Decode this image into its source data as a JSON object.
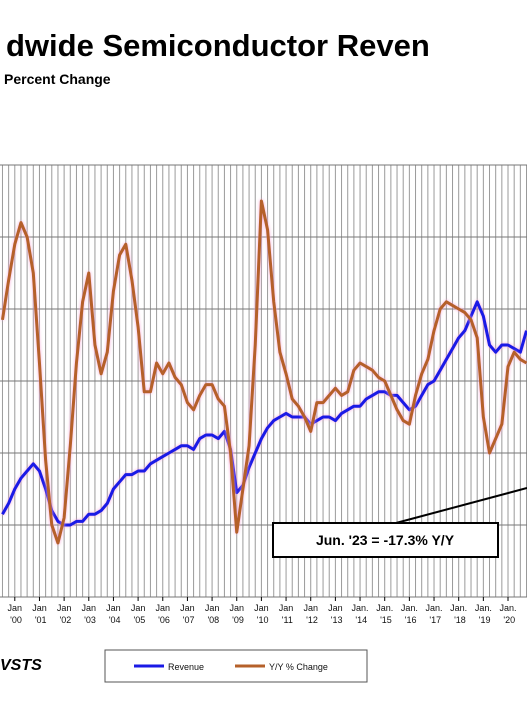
{
  "chart_data": {
    "type": "line",
    "title": "dwide Semiconductor Reven",
    "subtitle": "Percent Change",
    "annotation": "Jun. '23 = -17.3% Y/Y",
    "source": "VSTS",
    "grid": true,
    "xlim": [
      1999.4,
      2020.77
    ],
    "ylim": [
      0,
      60
    ],
    "y2lim": [
      -60,
      60
    ],
    "xticks": [
      {
        "value": 2000,
        "label": "Jan '00"
      },
      {
        "value": 2001,
        "label": "Jan '01"
      },
      {
        "value": 2002,
        "label": "Jan '02"
      },
      {
        "value": 2003,
        "label": "Jan '03"
      },
      {
        "value": 2004,
        "label": "Jan '04"
      },
      {
        "value": 2005,
        "label": "Jan '05"
      },
      {
        "value": 2006,
        "label": "Jan '06"
      },
      {
        "value": 2007,
        "label": "Jan '07"
      },
      {
        "value": 2008,
        "label": "Jan '08"
      },
      {
        "value": 2009,
        "label": "Jan '09"
      },
      {
        "value": 2010,
        "label": "Jan '10"
      },
      {
        "value": 2011,
        "label": "Jan '11"
      },
      {
        "value": 2012,
        "label": "Jan '12"
      },
      {
        "value": 2013,
        "label": "Jan '13"
      },
      {
        "value": 2014,
        "label": "Jan. '14"
      },
      {
        "value": 2015,
        "label": "Jan. '15"
      },
      {
        "value": 2016,
        "label": "Jan. '16"
      },
      {
        "value": 2017,
        "label": "Jan. '17"
      },
      {
        "value": 2018,
        "label": "Jan. '18"
      },
      {
        "value": 2019,
        "label": "Jan. '19"
      },
      {
        "value": 2020,
        "label": "Jan. '20"
      }
    ],
    "x": [
      1999.5,
      1999.75,
      2000,
      2000.25,
      2000.5,
      2000.75,
      2001,
      2001.25,
      2001.5,
      2001.75,
      2002,
      2002.25,
      2002.5,
      2002.75,
      2003,
      2003.25,
      2003.5,
      2003.75,
      2004,
      2004.25,
      2004.5,
      2004.75,
      2005,
      2005.25,
      2005.5,
      2005.75,
      2006,
      2006.25,
      2006.5,
      2006.75,
      2007,
      2007.25,
      2007.5,
      2007.75,
      2008,
      2008.25,
      2008.5,
      2008.75,
      2009,
      2009.25,
      2009.5,
      2009.75,
      2010,
      2010.25,
      2010.5,
      2010.75,
      2011,
      2011.25,
      2011.5,
      2011.75,
      2012,
      2012.25,
      2012.5,
      2012.75,
      2013,
      2013.25,
      2013.5,
      2013.75,
      2014,
      2014.25,
      2014.5,
      2014.75,
      2015,
      2015.25,
      2015.5,
      2015.75,
      2016,
      2016.25,
      2016.5,
      2016.75,
      2017,
      2017.25,
      2017.5,
      2017.75,
      2018,
      2018.25,
      2018.5,
      2018.75,
      2019,
      2019.25,
      2019.5,
      2019.75,
      2020,
      2020.25,
      2020.5,
      2020.75
    ],
    "series": [
      {
        "name": "Revenue",
        "color": "#1a1ae6",
        "values": [
          11.5,
          13,
          15,
          16.5,
          17.5,
          18.5,
          17.5,
          15,
          12,
          10.5,
          10,
          10,
          10.5,
          10.5,
          11.5,
          11.5,
          12,
          13,
          15,
          16,
          17,
          17,
          17.5,
          17.5,
          18.5,
          19,
          19.5,
          20,
          20.5,
          21,
          21,
          20.5,
          22,
          22.5,
          22.5,
          22,
          23,
          20.5,
          14.5,
          15.5,
          18,
          20,
          22,
          23.5,
          24.5,
          25,
          25.5,
          25,
          25,
          25,
          24,
          24.5,
          25,
          25,
          24.5,
          25.5,
          26,
          26.5,
          26.5,
          27.5,
          28,
          28.5,
          28.5,
          28,
          28,
          27,
          26,
          26.5,
          28,
          29.5,
          30,
          31.5,
          33,
          34.5,
          36,
          37,
          39,
          41,
          39,
          35,
          34,
          35,
          35,
          34.5,
          34,
          37
        ]
      },
      {
        "name": "Y/Y % Change",
        "color": "#b5602a",
        "axis": "y2",
        "values": [
          17,
          28,
          38,
          44,
          40,
          30,
          5,
          -22,
          -40,
          -45,
          -38,
          -18,
          5,
          22,
          30,
          10,
          2,
          8,
          25,
          35,
          38,
          28,
          15,
          -3,
          -3,
          5,
          2,
          5,
          1,
          -1,
          -6,
          -8,
          -4,
          -1,
          -1,
          -5,
          -7,
          -20,
          -42,
          -30,
          -18,
          10,
          50,
          42,
          22,
          8,
          2,
          -5,
          -7,
          -10,
          -14,
          -6,
          -6,
          -4,
          -2,
          -4,
          -3,
          3,
          5,
          4,
          3,
          1,
          0,
          -4,
          -8,
          -11,
          -12,
          -4,
          2,
          6,
          14,
          20,
          22,
          21,
          20,
          19,
          17,
          12,
          -10,
          -20,
          -16,
          -12,
          4,
          8,
          6,
          5
        ]
      }
    ]
  }
}
